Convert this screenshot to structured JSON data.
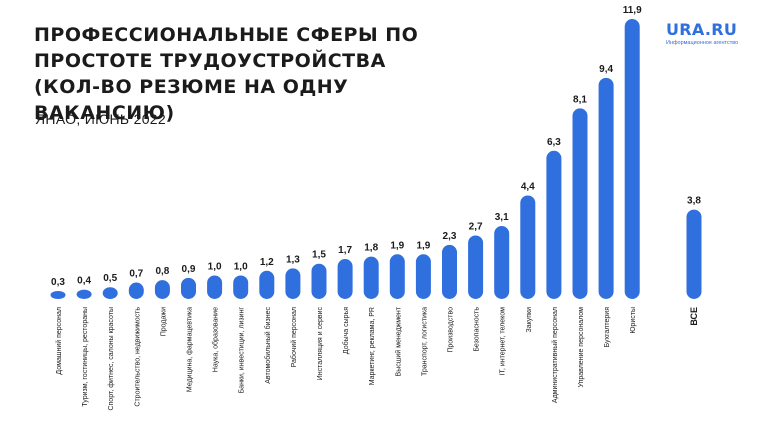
{
  "header": {
    "title": "ПРОФЕССИОНАЛЬНЫЕ СФЕРЫ ПО ПРОСТОТЕ ТРУДОУСТРОЙСТВА (КОЛ-ВО РЕЗЮМЕ НА ОДНУ ВАКАНСИЮ)",
    "subtitle": "ЯНАО, ИЮНЬ 2022"
  },
  "logo": {
    "name": "URA.RU",
    "tagline": "Информационное агентство"
  },
  "colors": {
    "bar": "#2f6fde",
    "text": "#1b1b1b"
  },
  "chart_data": {
    "type": "bar",
    "categories": [
      "Домашний персонал",
      "Туризм, гостиницы, рестораны",
      "Спорт, фитнес, салоны красоты",
      "Строительство, недвижимость",
      "Продажи",
      "Медицина, фармацевтика",
      "Наука, образование",
      "Банки, инвестиции, лизинг",
      "Автомобильный бизнес",
      "Рабочий персонал",
      "Инсталляция и сервис",
      "Добыча сырья",
      "Маркетинг, реклама, PR",
      "Высший менеджмент",
      "Транспорт, логистика",
      "Производство",
      "Безопасность",
      "IT, интернет, телеком",
      "Закупки",
      "Административный персонал",
      "Управление персоналом",
      "Бухгалтерия",
      "Юристы"
    ],
    "values": [
      0.3,
      0.4,
      0.5,
      0.7,
      0.8,
      0.9,
      1.0,
      1.0,
      1.2,
      1.3,
      1.5,
      1.7,
      1.8,
      1.9,
      1.9,
      2.3,
      2.7,
      3.1,
      4.4,
      6.3,
      8.1,
      9.4,
      11.9
    ],
    "value_labels": [
      "0,3",
      "0,4",
      "0,5",
      "0,7",
      "0,8",
      "0,9",
      "1,0",
      "1,0",
      "1,2",
      "1,3",
      "1,5",
      "1,7",
      "1,8",
      "1,9",
      "1,9",
      "2,3",
      "2,7",
      "3,1",
      "4,4",
      "6,3",
      "8,1",
      "9,4",
      "11,9"
    ],
    "total": {
      "label": "ВСЕ",
      "value": 3.8,
      "value_label": "3,8"
    },
    "title": "ПРОФЕССИОНАЛЬНЫЕ СФЕРЫ ПО ПРОСТОТЕ ТРУДОУСТРОЙСТВА (КОЛ-ВО РЕЗЮМЕ НА ОДНУ ВАКАНСИЮ)",
    "subtitle": "ЯНАО, ИЮНЬ 2022",
    "xlabel": "",
    "ylabel": "",
    "ylim": [
      0,
      11.9
    ],
    "grid": false,
    "legend": "none"
  }
}
